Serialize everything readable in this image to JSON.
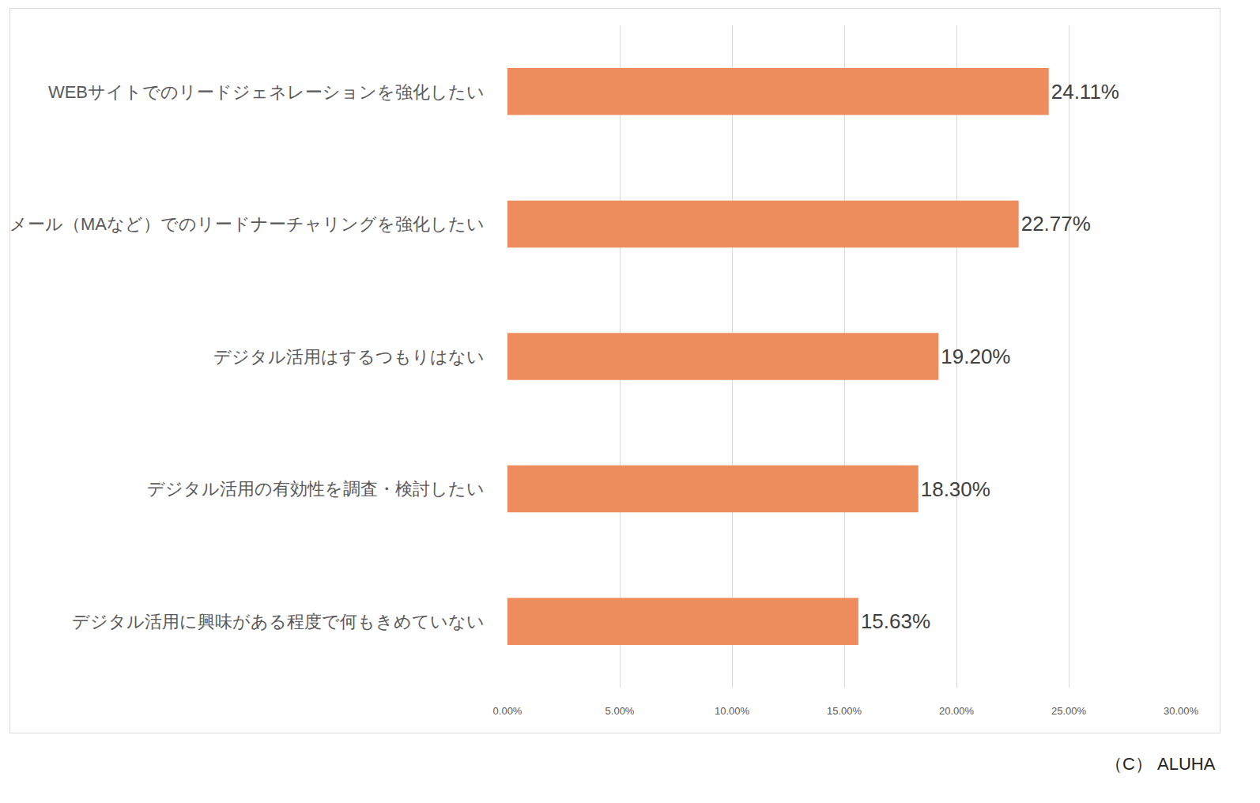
{
  "chart_data": {
    "type": "bar",
    "orientation": "horizontal",
    "categories": [
      "WEBサイトでのリードジェネレーションを強化したい",
      "メール（MAなど）でのリードナーチャリングを強化したい",
      "デジタル活用はするつもりはない",
      "デジタル活用の有効性を調査・検討したい",
      "デジタル活用に興味がある程度で何もきめていない"
    ],
    "values": [
      24.11,
      22.77,
      19.2,
      18.3,
      15.63
    ],
    "value_labels": [
      "24.11%",
      "22.77%",
      "19.20%",
      "18.30%",
      "15.63%"
    ],
    "data_labels": true,
    "color": "#ed8d5e",
    "xlim": [
      0,
      30
    ],
    "xticks": [
      {
        "value": 0,
        "label": "0.00%"
      },
      {
        "value": 5,
        "label": "5.00%"
      },
      {
        "value": 10,
        "label": "10.00%"
      },
      {
        "value": 15,
        "label": "15.00%"
      },
      {
        "value": 20,
        "label": "20.00%"
      },
      {
        "value": 25,
        "label": "25.00%"
      },
      {
        "value": 30,
        "label": "30.00%"
      }
    ],
    "grid": true,
    "annotations": [
      "（C） ALUHA"
    ]
  }
}
